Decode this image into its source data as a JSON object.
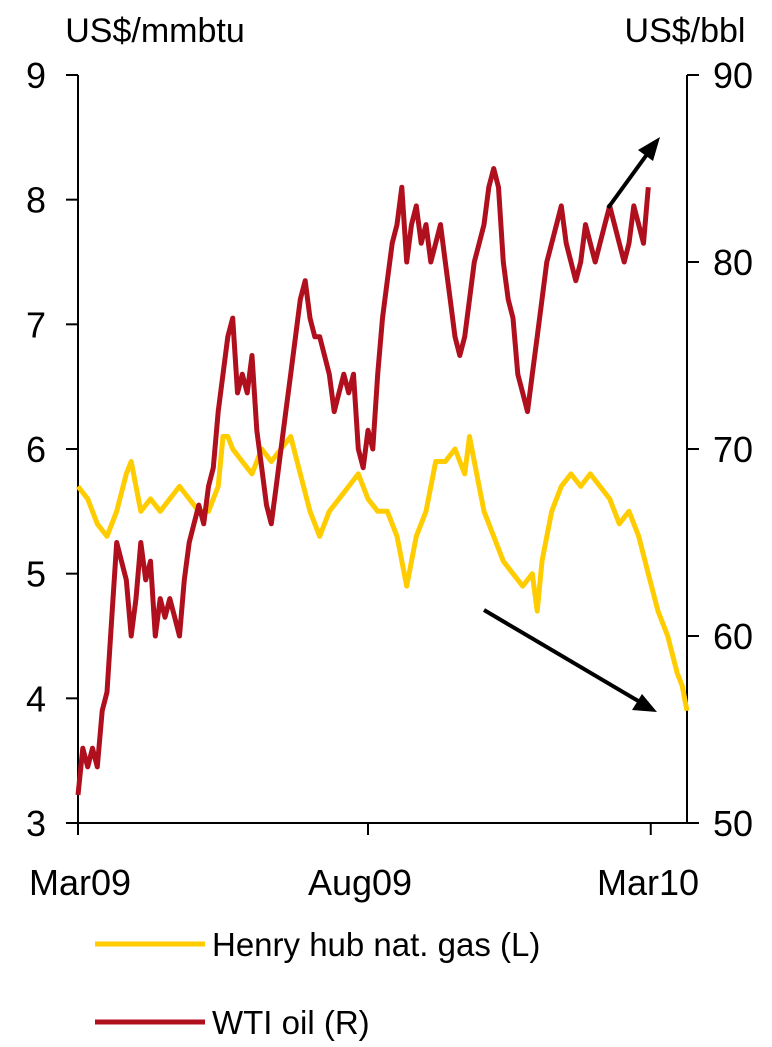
{
  "chart_data": {
    "type": "line",
    "left_axis": {
      "unit_label": "US$/mmbtu",
      "range": [
        3,
        9
      ],
      "ticks": [
        "3",
        "4",
        "5",
        "6",
        "7",
        "8",
        "9"
      ]
    },
    "right_axis": {
      "unit_label": "US$/bbl",
      "range": [
        50,
        90
      ],
      "ticks": [
        "50",
        "60",
        "70",
        "80",
        "90"
      ]
    },
    "x_axis": {
      "range": [
        "2009-03",
        "2010-03"
      ],
      "tick_labels": [
        "Mar09",
        "Aug09",
        "Mar10"
      ]
    },
    "grid": false,
    "legend_position": "bottom",
    "series": [
      {
        "name": "Henry hub nat. gas (L)",
        "axis": "left",
        "color": "#FFCC00",
        "points": [
          [
            0,
            5.7
          ],
          [
            4,
            5.6
          ],
          [
            8,
            5.4
          ],
          [
            12,
            5.3
          ],
          [
            16,
            5.5
          ],
          [
            20,
            5.8
          ],
          [
            22,
            5.9
          ],
          [
            26,
            5.5
          ],
          [
            30,
            5.6
          ],
          [
            34,
            5.5
          ],
          [
            38,
            5.6
          ],
          [
            42,
            5.7
          ],
          [
            46,
            5.6
          ],
          [
            50,
            5.5
          ],
          [
            54,
            5.5
          ],
          [
            58,
            5.7
          ],
          [
            60,
            6.1
          ],
          [
            62,
            6.1
          ],
          [
            64,
            6.0
          ],
          [
            68,
            5.9
          ],
          [
            72,
            5.8
          ],
          [
            76,
            6.0
          ],
          [
            80,
            5.9
          ],
          [
            84,
            6.0
          ],
          [
            88,
            6.1
          ],
          [
            92,
            5.8
          ],
          [
            96,
            5.5
          ],
          [
            100,
            5.3
          ],
          [
            104,
            5.5
          ],
          [
            108,
            5.6
          ],
          [
            112,
            5.7
          ],
          [
            116,
            5.8
          ],
          [
            120,
            5.6
          ],
          [
            124,
            5.5
          ],
          [
            128,
            5.5
          ],
          [
            132,
            5.3
          ],
          [
            136,
            4.9
          ],
          [
            140,
            5.3
          ],
          [
            144,
            5.5
          ],
          [
            148,
            5.9
          ],
          [
            152,
            5.9
          ],
          [
            156,
            6.0
          ],
          [
            160,
            5.8
          ],
          [
            162,
            6.1
          ],
          [
            164,
            5.9
          ],
          [
            168,
            5.5
          ],
          [
            172,
            5.3
          ],
          [
            176,
            5.1
          ],
          [
            180,
            5.0
          ],
          [
            184,
            4.9
          ],
          [
            188,
            5.0
          ],
          [
            190,
            4.7
          ],
          [
            192,
            5.1
          ],
          [
            196,
            5.5
          ],
          [
            200,
            5.7
          ],
          [
            204,
            5.8
          ],
          [
            208,
            5.7
          ],
          [
            212,
            5.8
          ],
          [
            216,
            5.7
          ],
          [
            220,
            5.6
          ],
          [
            224,
            5.4
          ],
          [
            228,
            5.5
          ],
          [
            232,
            5.3
          ],
          [
            236,
            5.0
          ],
          [
            240,
            4.7
          ],
          [
            244,
            4.5
          ],
          [
            248,
            4.2
          ],
          [
            250,
            4.1
          ],
          [
            252,
            3.9
          ]
        ]
      },
      {
        "name": "WTI oil (R)",
        "axis": "right",
        "color": "#B0101E",
        "points": [
          [
            0,
            51.5
          ],
          [
            2,
            54
          ],
          [
            4,
            53
          ],
          [
            6,
            54
          ],
          [
            8,
            53
          ],
          [
            10,
            56
          ],
          [
            12,
            57
          ],
          [
            14,
            61
          ],
          [
            16,
            65
          ],
          [
            18,
            64
          ],
          [
            20,
            63
          ],
          [
            22,
            60
          ],
          [
            24,
            62
          ],
          [
            26,
            65
          ],
          [
            28,
            63
          ],
          [
            30,
            64
          ],
          [
            32,
            60
          ],
          [
            34,
            62
          ],
          [
            36,
            61
          ],
          [
            38,
            62
          ],
          [
            40,
            61
          ],
          [
            42,
            60
          ],
          [
            44,
            63
          ],
          [
            46,
            65
          ],
          [
            48,
            66
          ],
          [
            50,
            67
          ],
          [
            52,
            66
          ],
          [
            54,
            68
          ],
          [
            56,
            69
          ],
          [
            58,
            72
          ],
          [
            60,
            74
          ],
          [
            62,
            76
          ],
          [
            64,
            77
          ],
          [
            66,
            73
          ],
          [
            68,
            74
          ],
          [
            70,
            73
          ],
          [
            72,
            75
          ],
          [
            74,
            71
          ],
          [
            76,
            69
          ],
          [
            78,
            67
          ],
          [
            80,
            66
          ],
          [
            82,
            68
          ],
          [
            84,
            70
          ],
          [
            86,
            72
          ],
          [
            88,
            74
          ],
          [
            90,
            76
          ],
          [
            92,
            78
          ],
          [
            94,
            79
          ],
          [
            96,
            77
          ],
          [
            98,
            76
          ],
          [
            100,
            76
          ],
          [
            102,
            75
          ],
          [
            104,
            74
          ],
          [
            106,
            72
          ],
          [
            108,
            73
          ],
          [
            110,
            74
          ],
          [
            112,
            73
          ],
          [
            114,
            74
          ],
          [
            116,
            70
          ],
          [
            118,
            69
          ],
          [
            120,
            71
          ],
          [
            122,
            70
          ],
          [
            124,
            74
          ],
          [
            126,
            77
          ],
          [
            128,
            79
          ],
          [
            130,
            81
          ],
          [
            132,
            82
          ],
          [
            134,
            84
          ],
          [
            136,
            80
          ],
          [
            138,
            82
          ],
          [
            140,
            83
          ],
          [
            142,
            81
          ],
          [
            144,
            82
          ],
          [
            146,
            80
          ],
          [
            148,
            81
          ],
          [
            150,
            82
          ],
          [
            152,
            80
          ],
          [
            154,
            78
          ],
          [
            156,
            76
          ],
          [
            158,
            75
          ],
          [
            160,
            76
          ],
          [
            162,
            78
          ],
          [
            164,
            80
          ],
          [
            166,
            81
          ],
          [
            168,
            82
          ],
          [
            170,
            84
          ],
          [
            172,
            85
          ],
          [
            174,
            84
          ],
          [
            176,
            80
          ],
          [
            178,
            78
          ],
          [
            180,
            77
          ],
          [
            182,
            74
          ],
          [
            184,
            73
          ],
          [
            186,
            72
          ],
          [
            188,
            74
          ],
          [
            190,
            76
          ],
          [
            192,
            78
          ],
          [
            194,
            80
          ],
          [
            196,
            81
          ],
          [
            198,
            82
          ],
          [
            200,
            83
          ],
          [
            202,
            81
          ],
          [
            204,
            80
          ],
          [
            206,
            79
          ],
          [
            208,
            80
          ],
          [
            210,
            82
          ],
          [
            212,
            81
          ],
          [
            214,
            80
          ],
          [
            216,
            81
          ],
          [
            218,
            82
          ],
          [
            220,
            83
          ],
          [
            222,
            82
          ],
          [
            224,
            81
          ],
          [
            226,
            80
          ],
          [
            228,
            81
          ],
          [
            230,
            83
          ],
          [
            232,
            82
          ],
          [
            234,
            81
          ],
          [
            236,
            84
          ]
        ]
      }
    ],
    "annotations": [
      {
        "kind": "arrow",
        "target_series": "WTI oil (R)",
        "direction": "up"
      },
      {
        "kind": "arrow",
        "target_series": "Henry hub nat. gas (L)",
        "direction": "down"
      }
    ]
  }
}
